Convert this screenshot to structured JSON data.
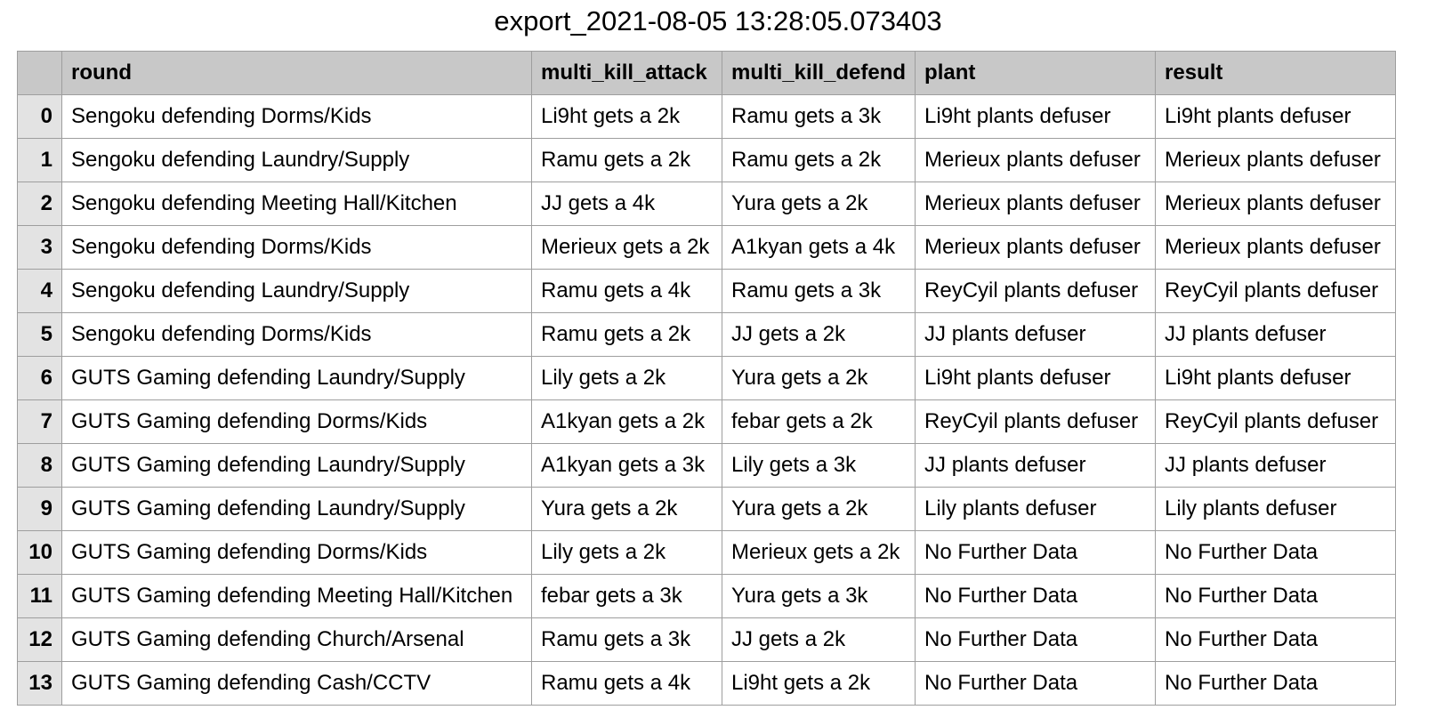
{
  "document": {
    "title": "export_2021-08-05 13:28:05.073403"
  },
  "table": {
    "columns": [
      "",
      "round",
      "multi_kill_attack",
      "multi_kill_defend",
      "plant",
      "result"
    ],
    "rows": [
      [
        "0",
        "Sengoku defending Dorms/Kids",
        "Li9ht gets a 2k",
        "Ramu gets a 3k",
        "Li9ht plants defuser",
        "Li9ht plants defuser"
      ],
      [
        "1",
        "Sengoku defending Laundry/Supply",
        "Ramu gets a 2k",
        "Ramu gets a 2k",
        "Merieux plants defuser",
        "Merieux plants defuser"
      ],
      [
        "2",
        "Sengoku defending Meeting Hall/Kitchen",
        "JJ gets a 4k",
        "Yura gets a 2k",
        "Merieux plants defuser",
        "Merieux plants defuser"
      ],
      [
        "3",
        "Sengoku defending Dorms/Kids",
        "Merieux gets a 2k",
        "A1kyan gets a 4k",
        "Merieux plants defuser",
        "Merieux plants defuser"
      ],
      [
        "4",
        "Sengoku defending Laundry/Supply",
        "Ramu gets a 4k",
        "Ramu gets a 3k",
        "ReyCyil plants defuser",
        "ReyCyil plants defuser"
      ],
      [
        "5",
        "Sengoku defending Dorms/Kids",
        "Ramu gets a 2k",
        "JJ gets a 2k",
        "JJ plants defuser",
        "JJ plants defuser"
      ],
      [
        "6",
        "GUTS Gaming defending Laundry/Supply",
        "Lily gets a 2k",
        "Yura gets a 2k",
        "Li9ht plants defuser",
        "Li9ht plants defuser"
      ],
      [
        "7",
        "GUTS Gaming defending Dorms/Kids",
        "A1kyan gets a 2k",
        "febar gets a 2k",
        "ReyCyil plants defuser",
        "ReyCyil plants defuser"
      ],
      [
        "8",
        "GUTS Gaming defending Laundry/Supply",
        "A1kyan gets a 3k",
        "Lily gets a 3k",
        "JJ plants defuser",
        "JJ plants defuser"
      ],
      [
        "9",
        "GUTS Gaming defending Laundry/Supply",
        "Yura gets a 2k",
        "Yura gets a 2k",
        "Lily plants defuser",
        "Lily plants defuser"
      ],
      [
        "10",
        "GUTS Gaming defending Dorms/Kids",
        "Lily gets a 2k",
        "Merieux gets a 2k",
        "No Further Data",
        "No Further Data"
      ],
      [
        "11",
        "GUTS Gaming defending Meeting Hall/Kitchen",
        "febar gets a 3k",
        "Yura gets a 3k",
        "No Further Data",
        "No Further Data"
      ],
      [
        "12",
        "GUTS Gaming defending Church/Arsenal",
        "Ramu gets a 3k",
        "JJ gets a 2k",
        "No Further Data",
        "No Further Data"
      ],
      [
        "13",
        "GUTS Gaming defending Cash/CCTV",
        "Ramu gets a 4k",
        "Li9ht gets a 2k",
        "No Further Data",
        "No Further Data"
      ]
    ]
  }
}
